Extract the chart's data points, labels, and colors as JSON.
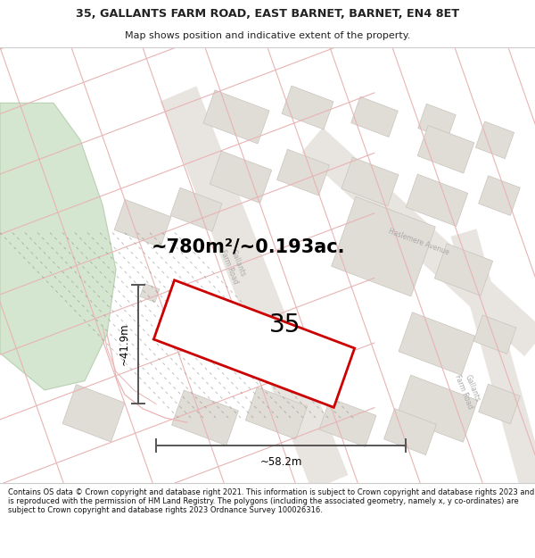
{
  "title_line1": "35, GALLANTS FARM ROAD, EAST BARNET, BARNET, EN4 8ET",
  "title_line2": "Map shows position and indicative extent of the property.",
  "area_text": "~780m²/~0.193ac.",
  "label_35": "35",
  "dim_width": "~58.2m",
  "dim_height": "~41.9m",
  "footer_text": "Contains OS data © Crown copyright and database right 2021. This information is subject to Crown copyright and database rights 2023 and is reproduced with the permission of HM Land Registry. The polygons (including the associated geometry, namely x, y co-ordinates) are subject to Crown copyright and database rights 2023 Ordnance Survey 100026316.",
  "map_bg": "#f5f4f0",
  "boundary_color": "#e8b4b4",
  "plot_outline_color": "#cc0000",
  "dim_line_color": "#555555",
  "text_color": "#222222",
  "green_area_color": "#d4e6cf",
  "building_color": "#e0dcd6",
  "building_edge": "#c8c4bc",
  "road_fill": "#f0ece8",
  "dashed_line_color": "#888888"
}
